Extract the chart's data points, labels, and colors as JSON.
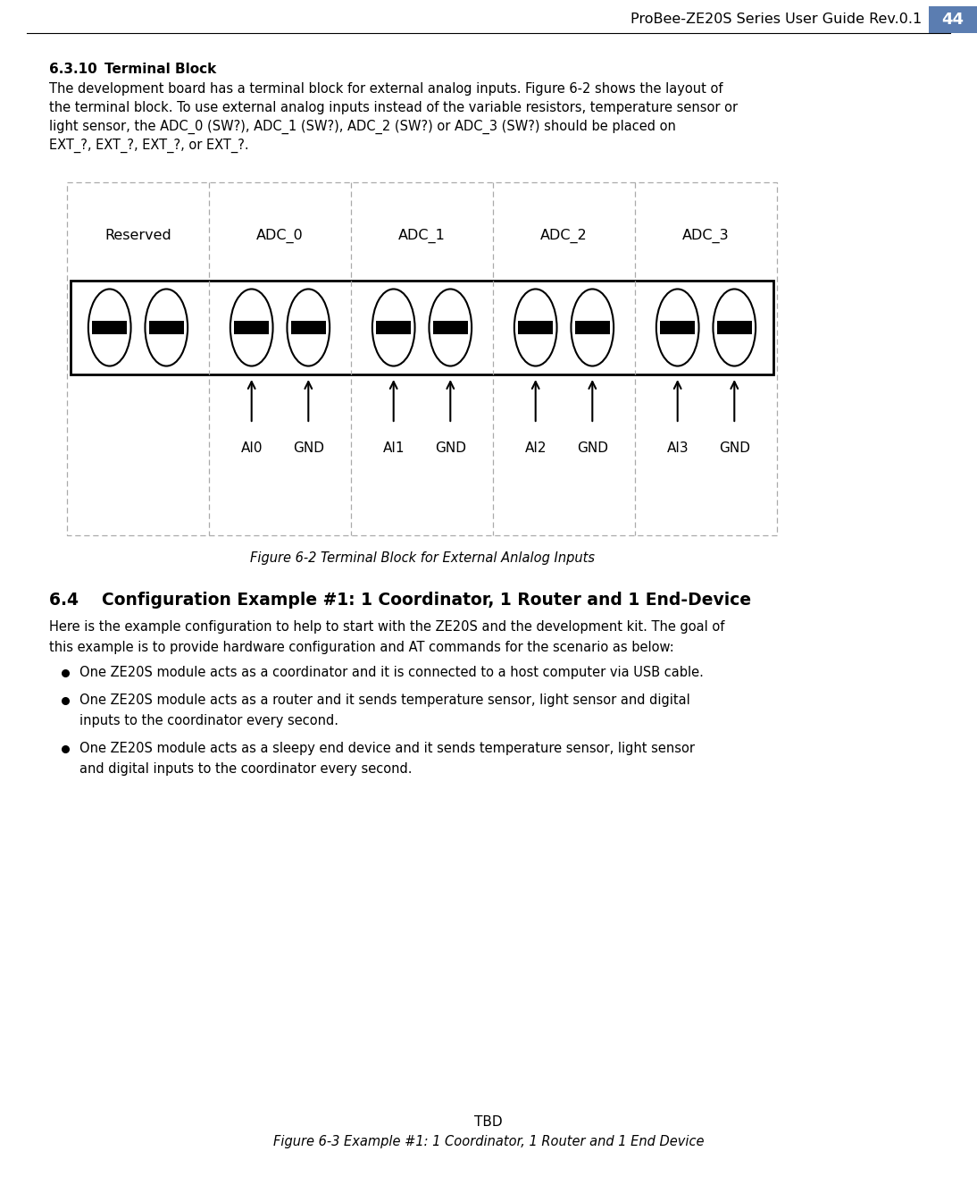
{
  "page_title": "ProBee-ZE20S Series User Guide Rev.0.1",
  "page_number": "44",
  "page_number_bg": "#5b7db1",
  "figure_label_cols": [
    "Reserved",
    "ADC_0",
    "ADC_1",
    "ADC_2",
    "ADC_3"
  ],
  "figure_bottom_labels": [
    "AI0",
    "GND",
    "AI1",
    "GND",
    "AI2",
    "GND",
    "AI3",
    "GND"
  ],
  "figure_caption": "Figure 6-2 Terminal Block for External Anlalog Inputs",
  "tbd_text": "TBD",
  "figure63_caption": "Figure 6-3 Example #1: 1 Coordinator, 1 Router and 1 End Device",
  "bg_color": "#ffffff",
  "dashed_border_color": "#aaaaaa",
  "section_631_title_part1": "6.3.10",
  "section_631_title_part2": "Terminal Block",
  "body_631_lines": [
    "The development board has a terminal block for external analog inputs. Figure 6-2 shows the layout of",
    "the terminal block. To use external analog inputs instead of the variable resistors, temperature sensor or",
    "light sensor, the ADC_0 (SW?), ADC_1 (SW?), ADC_2 (SW?) or ADC_3 (SW?) should be placed on",
    "EXT_?, EXT_?, EXT_?, or EXT_?."
  ],
  "section_64_title": "6.4    Configuration Example #1: 1 Coordinator, 1 Router and 1 End-Device",
  "body_64_lines": [
    "Here is the example configuration to help to start with the ZE20S and the development kit. The goal of",
    "this example is to provide hardware configuration and AT commands for the scenario as below:"
  ],
  "bullets": [
    [
      "One ZE20S module acts as a coordinator and it is connected to a host computer via USB cable."
    ],
    [
      "One ZE20S module acts as a router and it sends temperature sensor, light sensor and digital",
      "inputs to the coordinator every second."
    ],
    [
      "One ZE20S module acts as a sleepy end device and it sends temperature sensor, light sensor",
      "and digital inputs to the coordinator every second."
    ]
  ]
}
